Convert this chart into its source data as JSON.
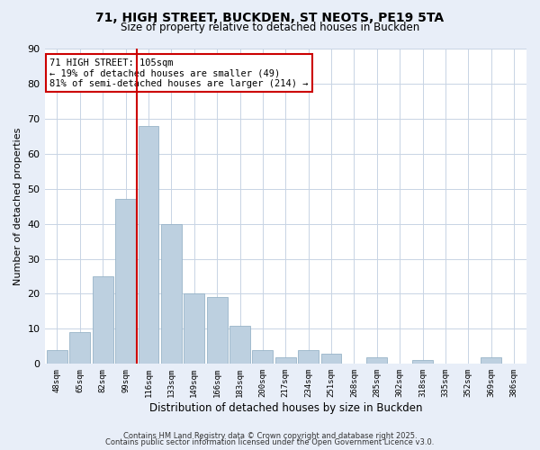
{
  "title": "71, HIGH STREET, BUCKDEN, ST NEOTS, PE19 5TA",
  "subtitle": "Size of property relative to detached houses in Buckden",
  "xlabel": "Distribution of detached houses by size in Buckden",
  "ylabel": "Number of detached properties",
  "bar_color": "#bdd0e0",
  "bar_edge_color": "#98b4c8",
  "categories": [
    "48sqm",
    "65sqm",
    "82sqm",
    "99sqm",
    "116sqm",
    "133sqm",
    "149sqm",
    "166sqm",
    "183sqm",
    "200sqm",
    "217sqm",
    "234sqm",
    "251sqm",
    "268sqm",
    "285sqm",
    "302sqm",
    "318sqm",
    "335sqm",
    "352sqm",
    "369sqm",
    "386sqm"
  ],
  "values": [
    4,
    9,
    25,
    47,
    68,
    40,
    20,
    19,
    11,
    4,
    2,
    4,
    3,
    0,
    2,
    0,
    1,
    0,
    0,
    2,
    0
  ],
  "ylim": [
    0,
    90
  ],
  "yticks": [
    0,
    10,
    20,
    30,
    40,
    50,
    60,
    70,
    80,
    90
  ],
  "property_line_x": 3.5,
  "property_line_color": "#cc0000",
  "annotation_title": "71 HIGH STREET: 105sqm",
  "annotation_line1": "← 19% of detached houses are smaller (49)",
  "annotation_line2": "81% of semi-detached houses are larger (214) →",
  "footer1": "Contains HM Land Registry data © Crown copyright and database right 2025.",
  "footer2": "Contains public sector information licensed under the Open Government Licence v3.0.",
  "bg_color": "#e8eef8",
  "plot_bg_color": "#ffffff",
  "grid_color": "#c8d4e4"
}
